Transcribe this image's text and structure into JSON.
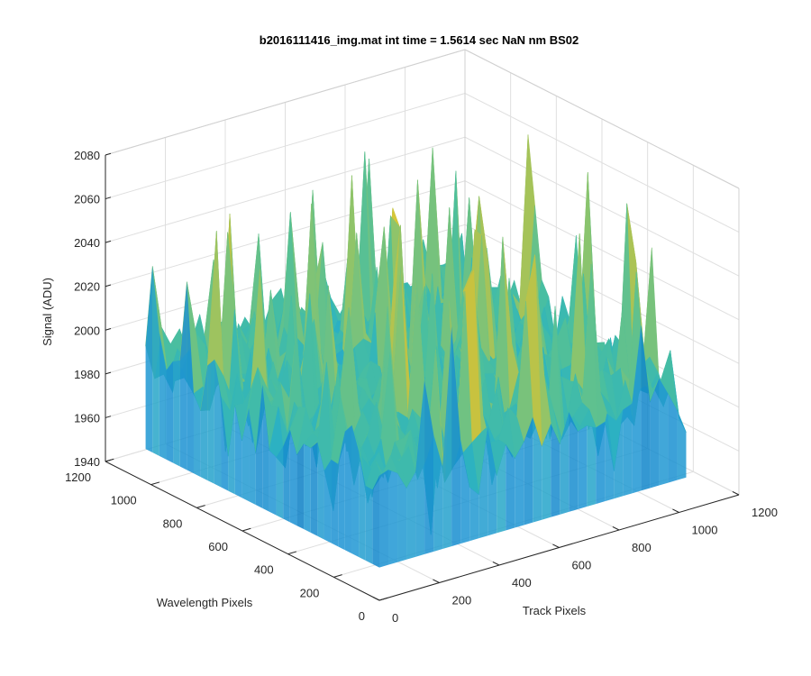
{
  "chart_data": {
    "type": "surface",
    "title": "b2016111416_img.mat int time = 1.5614 sec  NaN nm BS02",
    "xlabel": "Track Pixels",
    "ylabel": "Wavelength Pixels",
    "zlabel": "Signal (ADU)",
    "xlim": [
      0,
      1200
    ],
    "ylim": [
      0,
      1200
    ],
    "zlim": [
      1940,
      2080
    ],
    "x_ticks": [
      "0",
      "200",
      "400",
      "600",
      "800",
      "1000",
      "1200"
    ],
    "y_ticks": [
      "0",
      "200",
      "400",
      "600",
      "800",
      "1000",
      "1200"
    ],
    "z_ticks": [
      "1940",
      "1960",
      "1980",
      "2000",
      "2020",
      "2040",
      "2060",
      "2080"
    ],
    "grid": true,
    "surface": {
      "description_values": "noisy dark-frame surface over roughly 1024 x 1024 pixels",
      "x_range": [
        0,
        1024
      ],
      "y_range": [
        0,
        1024
      ],
      "mean_signal": 1995,
      "typical_min": 1960,
      "typical_max": 2030,
      "spike_max": 2075,
      "colormap": [
        "#0072bd",
        "#1e95d4",
        "#2db3c0",
        "#4bbf9e",
        "#8ec46b",
        "#c9c23e",
        "#f2d02e"
      ]
    }
  }
}
